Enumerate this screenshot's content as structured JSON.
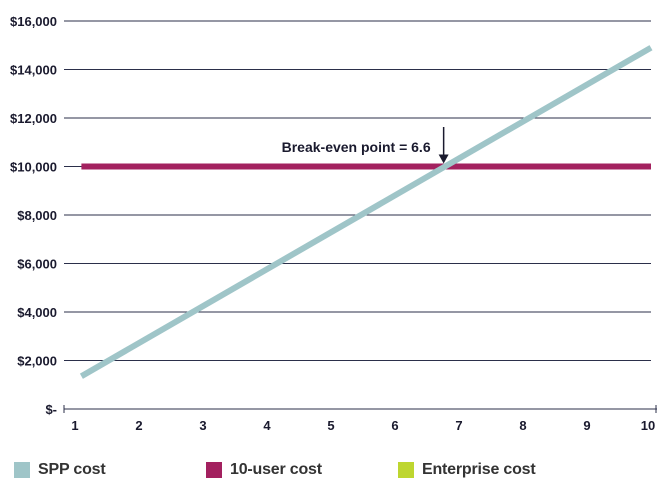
{
  "chart_data": {
    "type": "line",
    "x": [
      1,
      2,
      3,
      4,
      5,
      6,
      7,
      8,
      9,
      10
    ],
    "xlim": [
      1,
      10
    ],
    "ylim": [
      0,
      16000
    ],
    "y_ticks": [
      0,
      2000,
      4000,
      6000,
      8000,
      10000,
      12000,
      14000,
      16000
    ],
    "y_tick_labels": [
      "$-",
      "$2,000",
      "$4,000",
      "$6,000",
      "$8,000",
      "$10,000",
      "$12,000",
      "$14,000",
      "$16,000"
    ],
    "x_tick_labels": [
      "1",
      "2",
      "3",
      "4",
      "5",
      "6",
      "7",
      "8",
      "9",
      "10"
    ],
    "grid": "horizontal",
    "legend_position": "bottom",
    "series": [
      {
        "name": "SPP cost",
        "color": "#9fc5c8",
        "points": [
          [
            1.1,
            1350
          ],
          [
            10,
            14900
          ]
        ]
      },
      {
        "name": "10-user cost",
        "color": "#a3215f",
        "points": [
          [
            1.1,
            10000
          ],
          [
            10,
            10000
          ]
        ]
      },
      {
        "name": "Enterprise cost",
        "color": "#bed630",
        "points": []
      }
    ],
    "annotation": {
      "text": "Break-even point = 6.6",
      "x": 6.6,
      "y": 10000
    }
  }
}
